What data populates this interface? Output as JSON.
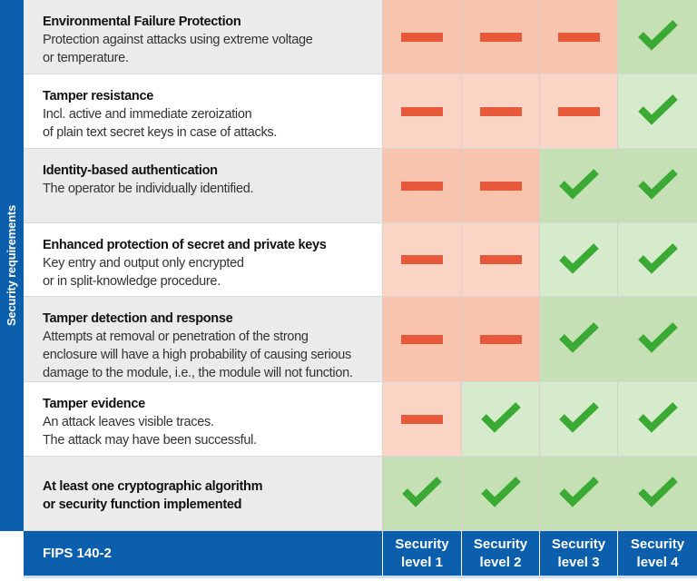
{
  "sidebar_label": "Security requirements",
  "colors": {
    "brand_blue": "#0b5fad",
    "no": "#e8583a",
    "yes": "#3aaa35"
  },
  "rows": [
    {
      "title": "Environmental Failure Protection",
      "lines": [
        "Protection against attacks using extreme voltage",
        "or temperature."
      ],
      "levels": [
        "no",
        "no",
        "no",
        "yes"
      ]
    },
    {
      "title": "Tamper resistance",
      "lines": [
        "Incl. active and immediate zeroization",
        "of plain text secret keys in case of attacks."
      ],
      "levels": [
        "no",
        "no",
        "no",
        "yes"
      ]
    },
    {
      "title": "Identity-based authentication",
      "lines": [
        "The operator be individually identified."
      ],
      "levels": [
        "no",
        "no",
        "yes",
        "yes"
      ]
    },
    {
      "title": "Enhanced protection of secret and private keys",
      "lines": [
        "Key entry and output only encrypted",
        "or in split-knowledge procedure."
      ],
      "levels": [
        "no",
        "no",
        "yes",
        "yes"
      ]
    },
    {
      "title": "Tamper detection and response",
      "lines": [
        "Attempts at removal or penetration of the strong",
        "enclosure will have a high probability of causing serious",
        "damage to the module, i.e., the module will not function."
      ],
      "levels": [
        "no",
        "no",
        "yes",
        "yes"
      ]
    },
    {
      "title": "Tamper evidence",
      "lines": [
        "An attack leaves visible traces.",
        "The attack may have been successful."
      ],
      "levels": [
        "no",
        "yes",
        "yes",
        "yes"
      ]
    },
    {
      "title": "At least one cryptographic algorithm",
      "lines": [
        "or security function implemented"
      ],
      "levels": [
        "yes",
        "yes",
        "yes",
        "yes"
      ],
      "bold_lines": true
    }
  ],
  "footer": {
    "label": "FIPS 140-2",
    "levels": [
      [
        "Security",
        "level 1"
      ],
      [
        "Security",
        "level 2"
      ],
      [
        "Security",
        "level 3"
      ],
      [
        "Security",
        "level 4"
      ]
    ]
  }
}
